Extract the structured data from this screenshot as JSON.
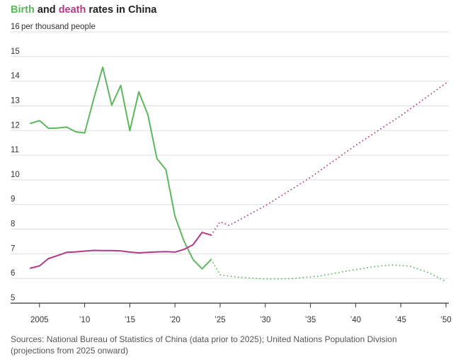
{
  "chart_data": {
    "type": "line",
    "title_parts": [
      "Birth",
      " and ",
      "death",
      " rates in China"
    ],
    "y_unit_label": "per thousand people",
    "ylim": [
      5,
      16
    ],
    "xlim": [
      2004,
      2050
    ],
    "y_ticks": [
      "5",
      "6",
      "7",
      "8",
      "9",
      "10",
      "11",
      "12",
      "13",
      "14",
      "15",
      "16"
    ],
    "x_ticks": [
      {
        "value": 2005,
        "label": "2005"
      },
      {
        "value": 2010,
        "label": "’10"
      },
      {
        "value": 2015,
        "label": "’15"
      },
      {
        "value": 2020,
        "label": "’20"
      },
      {
        "value": 2025,
        "label": "’25"
      },
      {
        "value": 2030,
        "label": "’30"
      },
      {
        "value": 2035,
        "label": "’35"
      },
      {
        "value": 2040,
        "label": "’40"
      },
      {
        "value": 2045,
        "label": "’45"
      },
      {
        "value": 2050,
        "label": "’50"
      }
    ],
    "grid": true,
    "colors": {
      "birth": "#5cb85c",
      "death": "#b03a84",
      "grid": "#dddddd",
      "axis": "#333333"
    },
    "series": [
      {
        "name": "Birth",
        "key": "birth",
        "style": "solid",
        "x": [
          2004,
          2005,
          2006,
          2007,
          2008,
          2009,
          2010,
          2011,
          2012,
          2013,
          2014,
          2015,
          2016,
          2017,
          2018,
          2019,
          2020,
          2021,
          2022,
          2023,
          2024
        ],
        "y": [
          12.29,
          12.4,
          12.09,
          12.1,
          12.14,
          11.95,
          11.9,
          13.27,
          14.57,
          13.03,
          13.83,
          11.99,
          13.57,
          12.64,
          10.86,
          10.41,
          8.52,
          7.52,
          6.77,
          6.39,
          6.77
        ]
      },
      {
        "name": "Birth projection",
        "key": "birth",
        "style": "dotted",
        "x": [
          2024,
          2025,
          2027,
          2030,
          2033,
          2036,
          2039,
          2042,
          2044,
          2046,
          2048,
          2050
        ],
        "y": [
          6.77,
          6.15,
          6.05,
          5.98,
          6.0,
          6.1,
          6.3,
          6.48,
          6.55,
          6.5,
          6.25,
          5.88
        ]
      },
      {
        "name": "Death",
        "key": "death",
        "style": "solid",
        "x": [
          2004,
          2005,
          2006,
          2007,
          2008,
          2009,
          2010,
          2011,
          2012,
          2013,
          2014,
          2015,
          2016,
          2017,
          2018,
          2019,
          2020,
          2021,
          2022,
          2023,
          2024
        ],
        "y": [
          6.42,
          6.51,
          6.81,
          6.93,
          7.06,
          7.08,
          7.11,
          7.14,
          7.13,
          7.13,
          7.12,
          7.07,
          7.04,
          7.06,
          7.08,
          7.09,
          7.07,
          7.18,
          7.37,
          7.87,
          7.76
        ]
      },
      {
        "name": "Death projection",
        "key": "death",
        "style": "dotted",
        "x": [
          2024,
          2025,
          2026,
          2030,
          2035,
          2040,
          2045,
          2050
        ],
        "y": [
          7.76,
          8.3,
          8.15,
          8.95,
          10.1,
          11.4,
          12.6,
          13.92
        ]
      }
    ],
    "source": [
      "Sources: National Bureau of Statistics of China (data prior to 2025); United Nations Population Division",
      "(projections from 2025 onward)"
    ]
  }
}
